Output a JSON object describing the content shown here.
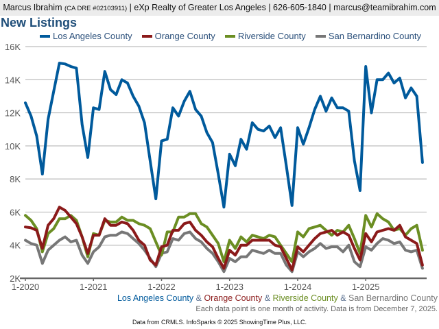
{
  "header": {
    "name": "Marcus Ibrahim",
    "license": "(CA DRE #02103911)",
    "rest": "| eXp Realty of Greater Los Angeles | 626-605-1840 | marcus@teamibrahim.com"
  },
  "chart_data": {
    "type": "line",
    "title": "New Listings",
    "xlabel": "",
    "ylabel": "",
    "ylim": [
      2000,
      16000
    ],
    "yticks": [
      "2K",
      "4K",
      "6K",
      "8K",
      "10K",
      "12K",
      "14K",
      "16K"
    ],
    "ytick_values": [
      2000,
      4000,
      6000,
      8000,
      10000,
      12000,
      14000,
      16000
    ],
    "xticks": [
      "1-2020",
      "1-2021",
      "1-2022",
      "1-2023",
      "1-2024",
      "1-2025"
    ],
    "x_start": "2020-01",
    "x_end": "2025-11",
    "grid": true,
    "legend_position": "top",
    "series": [
      {
        "name": "Los Angeles County",
        "color": "#005a9c",
        "values": [
          12600,
          11800,
          10600,
          8300,
          11600,
          13300,
          15000,
          14950,
          14800,
          14700,
          11300,
          9300,
          12300,
          12200,
          14500,
          13400,
          13100,
          14000,
          13800,
          13000,
          12400,
          11400,
          9100,
          6800,
          10300,
          10400,
          12300,
          11800,
          12700,
          13300,
          12200,
          11800,
          10800,
          10200,
          8300,
          6300,
          9500,
          8800,
          10400,
          9800,
          11400,
          11000,
          10900,
          11200,
          10500,
          11100,
          8800,
          6400,
          11100,
          10100,
          11100,
          12200,
          13000,
          12100,
          12900,
          12300,
          12300,
          12100,
          9100,
          7300,
          14800,
          12000,
          14000,
          14000,
          14400,
          13800,
          14100,
          12900,
          13500,
          13000,
          9000
        ]
      },
      {
        "name": "Orange County",
        "color": "#8b1a1a",
        "values": [
          5100,
          5050,
          4900,
          3800,
          5200,
          5600,
          6300,
          6100,
          5700,
          5300,
          4500,
          3500,
          4600,
          4600,
          5600,
          5200,
          5200,
          5400,
          5300,
          4900,
          4300,
          4000,
          3100,
          2800,
          3900,
          4000,
          4900,
          4900,
          5300,
          5400,
          4900,
          4600,
          4200,
          3900,
          3200,
          2600,
          3700,
          3400,
          4000,
          4000,
          4300,
          4300,
          4300,
          4300,
          4000,
          3900,
          3200,
          2500,
          3900,
          3600,
          4000,
          4400,
          4700,
          4800,
          4900,
          4600,
          4800,
          4600,
          3800,
          3100,
          4700,
          4200,
          4800,
          4900,
          5000,
          4900,
          5200,
          4500,
          4300,
          4100,
          2800
        ]
      },
      {
        "name": "Riverside County",
        "color": "#6b8e23",
        "values": [
          5800,
          5500,
          5000,
          3600,
          4700,
          5000,
          5600,
          5600,
          5800,
          5500,
          4500,
          3300,
          4700,
          4600,
          5500,
          5400,
          5400,
          5700,
          5500,
          5500,
          5300,
          5200,
          5000,
          4200,
          3400,
          4800,
          4800,
          5700,
          5700,
          5900,
          5900,
          5300,
          5100,
          4600,
          4100,
          3000,
          4300,
          3800,
          4500,
          4200,
          4600,
          4500,
          4400,
          4600,
          4500,
          4000,
          3500,
          3000,
          4800,
          4500,
          5000,
          5100,
          5200,
          4900,
          4600,
          4900,
          4800,
          5200,
          4400,
          3500,
          5800,
          5100,
          5900,
          5600,
          5400,
          4900,
          5000,
          4600,
          5000,
          5200,
          3700
        ]
      },
      {
        "name": "San Bernardino County",
        "color": "#777777",
        "values": [
          4300,
          4100,
          4000,
          2900,
          3700,
          4000,
          4300,
          4500,
          4200,
          4300,
          3400,
          2900,
          3600,
          3900,
          4500,
          4600,
          4600,
          4800,
          4700,
          4400,
          4100,
          3700,
          3200,
          2700,
          3500,
          3600,
          4400,
          4300,
          4700,
          4800,
          4400,
          4200,
          3800,
          3500,
          3000,
          2400,
          3200,
          3000,
          3300,
          3300,
          3700,
          3600,
          3500,
          3700,
          3500,
          3500,
          2800,
          2400,
          3600,
          3300,
          3600,
          3800,
          4100,
          3800,
          3900,
          3900,
          3600,
          4000,
          3000,
          2700,
          3900,
          3700,
          4100,
          4400,
          4300,
          4100,
          4200,
          3700,
          3600,
          3700,
          2600
        ]
      }
    ],
    "bottom_legend": {
      "sep": "&",
      "names": [
        "Los Angeles County",
        "Orange County",
        "Riverside County",
        "San Bernardino County"
      ]
    },
    "note": "Each data point is one month of activity. Data is from December 7, 2025."
  },
  "footer": "Data from CRMLS. InfoSparks © 2025 ShowingTime Plus, LLC."
}
